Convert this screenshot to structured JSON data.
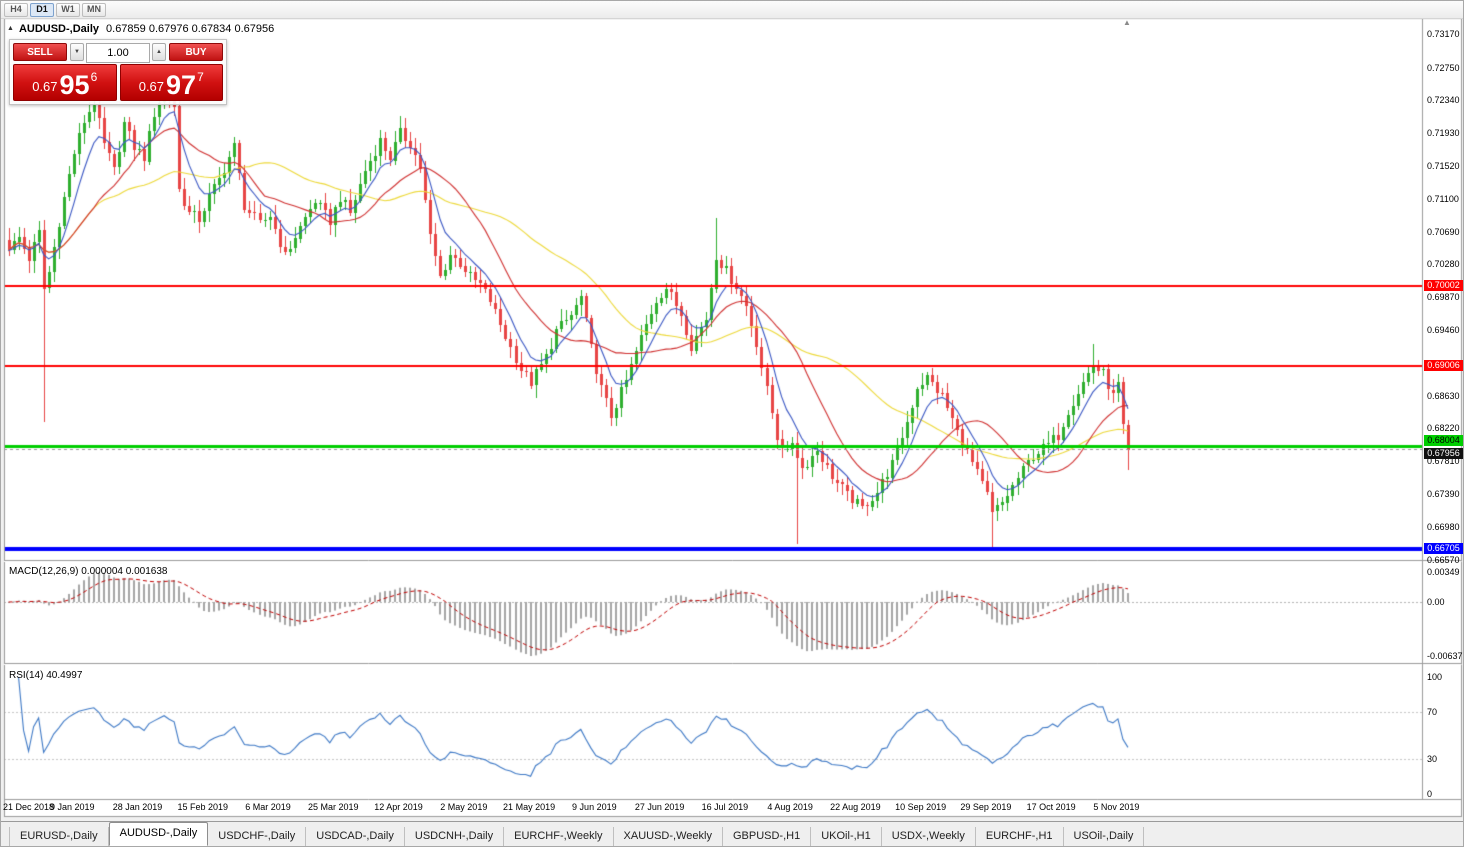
{
  "toolbar": {
    "periods": [
      {
        "label": "H4",
        "active": false
      },
      {
        "label": "D1",
        "active": true
      },
      {
        "label": "W1",
        "active": false
      },
      {
        "label": "MN",
        "active": false
      }
    ]
  },
  "icons": {
    "collapse": "▲",
    "shift_marker": "▲",
    "spin_down": "▼",
    "spin_up": "▲"
  },
  "chart": {
    "symbol_period": "AUDUSD-,Daily",
    "ohlc_line": "0.67859 0.67976 0.67834 0.67956",
    "trade": {
      "sell_label": "SELL",
      "buy_label": "BUY",
      "volume": "1.00",
      "sell_price": {
        "base": "0.67",
        "big": "95",
        "sup": "6"
      },
      "buy_price": {
        "base": "0.67",
        "big": "97",
        "sup": "7"
      }
    },
    "hlines": [
      {
        "price": 0.70002,
        "label": "0.70002",
        "color": "#FF0000",
        "width": 2,
        "tag_fg": "#FFFFFF",
        "tag_dy": -6
      },
      {
        "price": 0.69006,
        "label": "0.69006",
        "color": "#FF0000",
        "width": 2,
        "tag_fg": "#FFFFFF",
        "tag_dy": -6
      },
      {
        "price": 0.68004,
        "label": "0.68004",
        "color": "#00CE00",
        "width": 3,
        "tag_fg": "#000000",
        "tag_dy": -11
      },
      {
        "price": 0.66705,
        "label": "0.66705",
        "color": "#0000FF",
        "width": 4,
        "tag_fg": "#FFFFFF",
        "tag_dy": -6
      }
    ],
    "bid_tag": {
      "price": 0.67956,
      "label": "0.67956",
      "bg": "#111111",
      "fg": "#FFFFFF",
      "tag_dy": -1
    },
    "axis_labels": [
      "0.73170",
      "0.72750",
      "0.72340",
      "0.71930",
      "0.71520",
      "0.71100",
      "0.70690",
      "0.70280",
      "0.69870",
      "0.69460",
      "0.68630",
      "0.68220",
      "0.67810",
      "0.67390",
      "0.66980",
      "0.66570"
    ],
    "date_labels": [
      {
        "idx": 0,
        "text": "21 Dec 2018"
      },
      {
        "idx": 13,
        "text": "9 Jan 2019"
      },
      {
        "idx": 26,
        "text": "28 Jan 2019"
      },
      {
        "idx": 39,
        "text": "15 Feb 2019"
      },
      {
        "idx": 52,
        "text": "6 Mar 2019"
      },
      {
        "idx": 65,
        "text": "25 Mar 2019"
      },
      {
        "idx": 78,
        "text": "12 Apr 2019"
      },
      {
        "idx": 91,
        "text": "2 May 2019"
      },
      {
        "idx": 104,
        "text": "21 May 2019"
      },
      {
        "idx": 117,
        "text": "9 Jun 2019"
      },
      {
        "idx": 130,
        "text": "27 Jun 2019"
      },
      {
        "idx": 143,
        "text": "16 Jul 2019"
      },
      {
        "idx": 156,
        "text": "4 Aug 2019"
      },
      {
        "idx": 169,
        "text": "22 Aug 2019"
      },
      {
        "idx": 182,
        "text": "10 Sep 2019"
      },
      {
        "idx": 195,
        "text": "29 Sep 2019"
      },
      {
        "idx": 208,
        "text": "17 Oct 2019"
      },
      {
        "idx": 221,
        "text": "5 Nov 2019"
      }
    ]
  },
  "chart_data": {
    "type": "candlestick",
    "symbol": "AUDUSD",
    "timeframe": "Daily",
    "candle_count": 224,
    "last_close": 0.67956,
    "visible_range": {
      "price_max": 0.7336,
      "price_min": 0.6658
    },
    "up_color": "#2FAF2F",
    "down_color": "#E84545",
    "anchors": [
      [
        0,
        0.7045
      ],
      [
        2,
        0.7062
      ],
      [
        4,
        0.7035
      ],
      [
        6,
        0.7068
      ],
      [
        7,
        0.6998
      ],
      [
        8,
        0.7018
      ],
      [
        10,
        0.7082
      ],
      [
        13,
        0.7168
      ],
      [
        15,
        0.7208
      ],
      [
        17,
        0.7232
      ],
      [
        19,
        0.7178
      ],
      [
        21,
        0.7145
      ],
      [
        23,
        0.7205
      ],
      [
        25,
        0.7175
      ],
      [
        27,
        0.7162
      ],
      [
        29,
        0.7218
      ],
      [
        31,
        0.7248
      ],
      [
        33,
        0.7228
      ],
      [
        34,
        0.7122
      ],
      [
        36,
        0.7092
      ],
      [
        38,
        0.7085
      ],
      [
        40,
        0.7112
      ],
      [
        42,
        0.7135
      ],
      [
        45,
        0.7176
      ],
      [
        47,
        0.7102
      ],
      [
        50,
        0.7078
      ],
      [
        52,
        0.709
      ],
      [
        55,
        0.7038
      ],
      [
        58,
        0.7075
      ],
      [
        61,
        0.7108
      ],
      [
        64,
        0.7082
      ],
      [
        66,
        0.7112
      ],
      [
        68,
        0.7092
      ],
      [
        71,
        0.7146
      ],
      [
        74,
        0.7183
      ],
      [
        76,
        0.7162
      ],
      [
        78,
        0.7193
      ],
      [
        80,
        0.718
      ],
      [
        82,
        0.715
      ],
      [
        84,
        0.7062
      ],
      [
        86,
        0.7012
      ],
      [
        88,
        0.704
      ],
      [
        90,
        0.703
      ],
      [
        92,
        0.7012
      ],
      [
        94,
        0.7002
      ],
      [
        96,
        0.6982
      ],
      [
        99,
        0.6938
      ],
      [
        102,
        0.6896
      ],
      [
        104,
        0.688
      ],
      [
        107,
        0.6912
      ],
      [
        109,
        0.6944
      ],
      [
        112,
        0.6964
      ],
      [
        114,
        0.6986
      ],
      [
        116,
        0.6922
      ],
      [
        118,
        0.6872
      ],
      [
        120,
        0.6838
      ],
      [
        123,
        0.6882
      ],
      [
        126,
        0.6936
      ],
      [
        129,
        0.6984
      ],
      [
        131,
        0.6999
      ],
      [
        134,
        0.6966
      ],
      [
        136,
        0.6926
      ],
      [
        139,
        0.696
      ],
      [
        141,
        0.704
      ],
      [
        143,
        0.702
      ],
      [
        145,
        0.7
      ],
      [
        147,
        0.6976
      ],
      [
        149,
        0.693
      ],
      [
        151,
        0.687
      ],
      [
        153,
        0.6812
      ],
      [
        155,
        0.679
      ],
      [
        156,
        0.6806
      ],
      [
        158,
        0.6772
      ],
      [
        161,
        0.6795
      ],
      [
        164,
        0.6762
      ],
      [
        167,
        0.6738
      ],
      [
        170,
        0.6722
      ],
      [
        173,
        0.6742
      ],
      [
        176,
        0.6778
      ],
      [
        179,
        0.683
      ],
      [
        181,
        0.6874
      ],
      [
        183,
        0.6886
      ],
      [
        186,
        0.6862
      ],
      [
        189,
        0.6818
      ],
      [
        192,
        0.6778
      ],
      [
        195,
        0.6738
      ],
      [
        196,
        0.6714
      ],
      [
        198,
        0.6728
      ],
      [
        201,
        0.676
      ],
      [
        204,
        0.6788
      ],
      [
        207,
        0.6802
      ],
      [
        209,
        0.6814
      ],
      [
        211,
        0.6845
      ],
      [
        214,
        0.688
      ],
      [
        216,
        0.6902
      ],
      [
        218,
        0.689
      ],
      [
        220,
        0.6862
      ],
      [
        221,
        0.6876
      ],
      [
        222,
        0.682
      ],
      [
        223,
        0.67956
      ]
    ],
    "wick_events": [
      {
        "i": 7,
        "low": 0.683
      },
      {
        "i": 141,
        "high": 0.7086
      },
      {
        "i": 157,
        "low": 0.6676
      },
      {
        "i": 196,
        "low": 0.6672
      },
      {
        "i": 216,
        "high": 0.6928
      },
      {
        "i": 223,
        "low": 0.677
      }
    ],
    "ma": [
      {
        "name": "fast",
        "type": "ema",
        "period": 7,
        "color": "#3A57C4"
      },
      {
        "name": "mid",
        "type": "sma",
        "period": 18,
        "color": "#D03030"
      },
      {
        "name": "slow",
        "type": "sma",
        "period": 42,
        "color": "#EDD93A"
      }
    ]
  },
  "macd_panel": {
    "label": "MACD(12,26,9) 0.000004 0.001638",
    "axis": [
      "0.00349",
      "0.00",
      "-0.00637"
    ],
    "histogram_color": "#A6A6A6",
    "signal_color": "#C00000"
  },
  "rsi_panel": {
    "label": "RSI(14) 40.4997",
    "axis": [
      "100",
      "70",
      "30",
      "0"
    ],
    "levels": [
      70,
      30
    ],
    "line_color": "#3E79C6"
  },
  "tabs": [
    {
      "label": "EURUSD-,Daily",
      "active": false
    },
    {
      "label": "AUDUSD-,Daily",
      "active": true
    },
    {
      "label": "USDCHF-,Daily",
      "active": false
    },
    {
      "label": "USDCAD-,Daily",
      "active": false
    },
    {
      "label": "USDCNH-,Daily",
      "active": false
    },
    {
      "label": "EURCHF-,Weekly",
      "active": false
    },
    {
      "label": "XAUUSD-,Weekly",
      "active": false
    },
    {
      "label": "GBPUSD-,H1",
      "active": false
    },
    {
      "label": "UKOil-,H1",
      "active": false
    },
    {
      "label": "USDX-,Weekly",
      "active": false
    },
    {
      "label": "EURCHF-,H1",
      "active": false
    },
    {
      "label": "USOil-,Daily",
      "active": false
    }
  ]
}
